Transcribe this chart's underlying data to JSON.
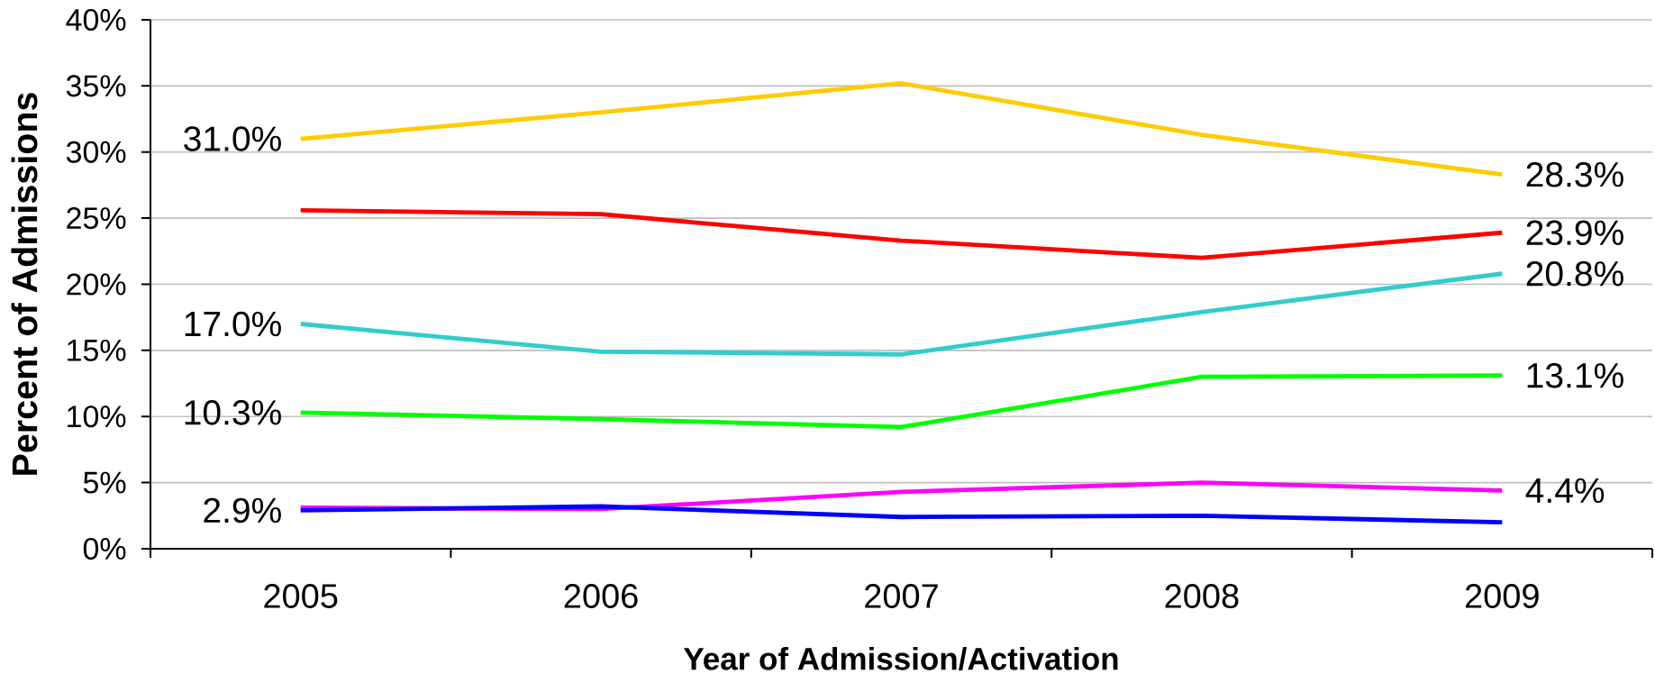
{
  "chart_data": {
    "type": "line",
    "xlabel": "Year of Admission/Activation",
    "ylabel": "Percent of Admissions",
    "categories": [
      "2005",
      "2006",
      "2007",
      "2008",
      "2009"
    ],
    "ylim": [
      0,
      40
    ],
    "yticks": [
      {
        "value": 0,
        "label": "0%"
      },
      {
        "value": 5,
        "label": "5%"
      },
      {
        "value": 10,
        "label": "10%"
      },
      {
        "value": 15,
        "label": "15%"
      },
      {
        "value": 20,
        "label": "20%"
      },
      {
        "value": 25,
        "label": "25%"
      },
      {
        "value": 30,
        "label": "30%"
      },
      {
        "value": 35,
        "label": "35%"
      },
      {
        "value": 40,
        "label": "40%"
      }
    ],
    "grid": "y",
    "marker": "none",
    "line_style": "solid",
    "series": [
      {
        "color": "#ffcc00",
        "values": [
          31.0,
          33.0,
          35.2,
          31.3,
          28.3
        ],
        "value_labels": [
          "31.0%",
          null,
          null,
          null,
          "28.3%"
        ]
      },
      {
        "color": "#ff0000",
        "values": [
          25.6,
          25.3,
          23.3,
          22.0,
          23.9
        ],
        "value_labels": [
          null,
          null,
          null,
          null,
          "23.9%"
        ]
      },
      {
        "color": "#33cccc",
        "values": [
          17.0,
          14.9,
          14.7,
          17.9,
          20.8
        ],
        "value_labels": [
          "17.0%",
          null,
          null,
          null,
          "20.8%"
        ]
      },
      {
        "color": "#00ff00",
        "values": [
          10.3,
          9.8,
          9.2,
          13.0,
          13.1
        ],
        "value_labels": [
          "10.3%",
          null,
          null,
          null,
          "13.1%"
        ]
      },
      {
        "color": "#ff00ff",
        "values": [
          3.1,
          3.0,
          4.3,
          5.0,
          4.4
        ],
        "value_labels": [
          null,
          null,
          null,
          null,
          "4.4%"
        ]
      },
      {
        "color": "#0000ff",
        "values": [
          2.9,
          3.2,
          2.4,
          2.5,
          2.0
        ],
        "value_labels": [
          "2.9%",
          null,
          null,
          null,
          null
        ]
      }
    ]
  }
}
